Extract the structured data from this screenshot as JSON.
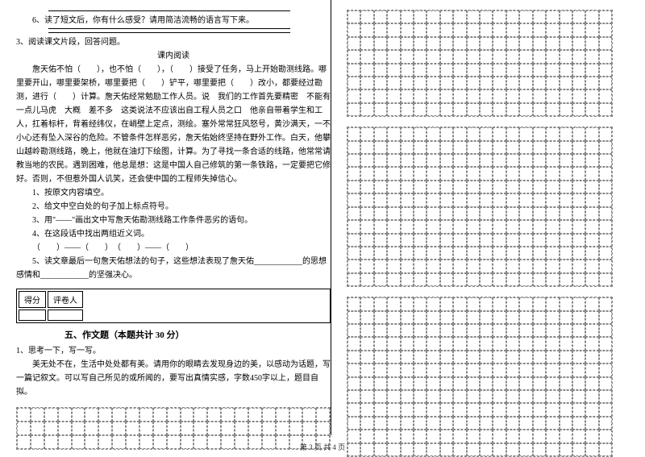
{
  "left": {
    "q6": "6、读了短文后，你有什么感受？请用简洁流畅的语言写下来。",
    "q3": "3、阅读课文片段，回答问题。",
    "subtitle": "课内阅读",
    "passage": "詹天佑不怕（　　），也不怕（　　），（　　）接受了任务，马上开始勘测线路。哪里要开山，哪里要架桥，哪里要把（　　）铲平，哪里要把（　　）改小，都要经过勘测，进行（　　）计算。詹天佑经常勉励工作人员。说　我们的工作首先要精密　不能有一点儿马虎　大概　差不多　这类说法不应该出自工程人员之口　他亲自带着学生和工人，扛着标杆，背着经纬仪，在峭壁上定点，测绘。塞外常常狂风怒号，黄沙满天，一不小心还有坠入深谷的危险。不管条件怎样恶劣，詹天佑始终坚持在野外工作。白天，他攀山越岭勘测线路，晚上，他就在油灯下绘图，计算。为了寻找一条合适的线路，他常常请教当地的农民。遇到困难，他总是想：这是中国人自己修筑的第一条铁路，一定要把它修好。否则，不但惹外国人讥笑，还会使中国的工程师失掉信心。",
    "sub1": "1、按原文内容填空。",
    "sub2": "2、给文中空白处的句子加上标点符号。",
    "sub3": "3、用\"——\"画出文中写詹天佑勘测线路工作条件恶劣的语句。",
    "sub4": "4、在这段话中找出两组近义词。",
    "sub4b": "（　　）——（　　）　（　　）——（　　）",
    "sub5": "5、读文章最后一句詹天佑想法的句子，这些想法表现了詹天佑____________的思想感情和____________的坚强决心。",
    "score_l": "得分",
    "score_r": "评卷人",
    "section5": "五、作文题（本题共计 30 分）",
    "t1": "1、思考一下，写一写。",
    "t1body": "美无处不在，生活中处处都有美。请用你的眼睛去发现身边的美，以感动为话题，写一篇记叙文。可以写自己所见的或所闻的，要写出真情实感，字数450字以上，题目自拟。"
  },
  "footer": "第 3 页 共 4 页",
  "grids": {
    "wide": {
      "cols": 23,
      "rows": 3
    },
    "right1": {
      "cols": 20,
      "rows": 8
    },
    "right2": {
      "cols": 20,
      "rows": 12
    },
    "right3": {
      "cols": 20,
      "rows": 12
    }
  },
  "style": {
    "grid_border": "#888888",
    "text_color": "#000000"
  }
}
